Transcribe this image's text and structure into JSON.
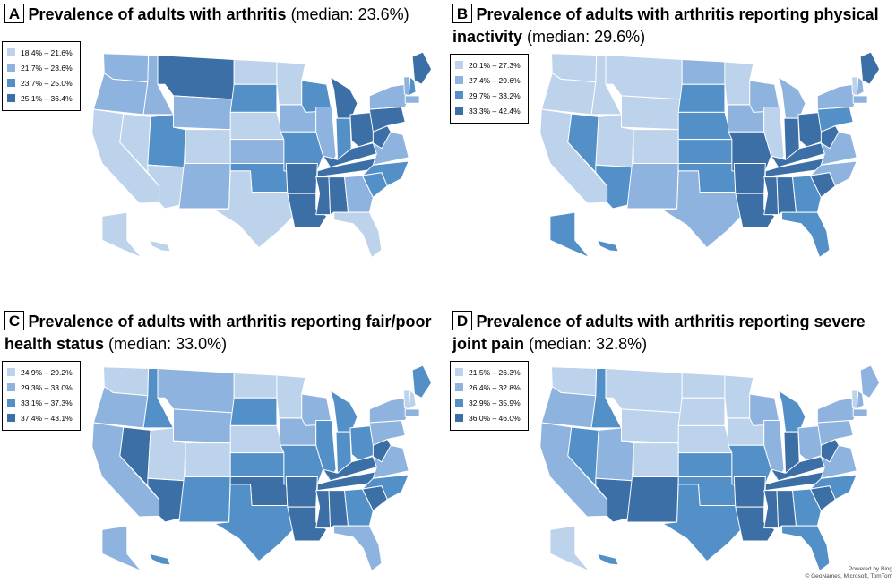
{
  "colors": {
    "level1": "#bdd3eb",
    "level2": "#8db3de",
    "level3": "#5390c8",
    "level4": "#3b6fa6",
    "no_data": "#d9d9d9",
    "state_border": "#ffffff"
  },
  "panels": [
    {
      "id": "A",
      "letter": "A",
      "title": "Prevalence of adults with arthritis",
      "median": "(median: 23.6%)",
      "legend": [
        "18.4% – 21.6%",
        "21.7% – 23.6%",
        "23.7% – 25.0%",
        "25.1% – 36.4%"
      ],
      "states": {
        "WA": 2,
        "OR": 2,
        "CA": 1,
        "NV": 1,
        "ID": 2,
        "MT": 4,
        "WY": 2,
        "UT": 3,
        "AZ": 1,
        "CO": 1,
        "NM": 2,
        "ND": 1,
        "SD": 3,
        "NE": 1,
        "KS": 2,
        "OK": 3,
        "TX": 1,
        "MN": 1,
        "IA": 2,
        "MO": 3,
        "AR": 4,
        "LA": 4,
        "WI": 3,
        "IL": 2,
        "MI": 4,
        "IN": 3,
        "OH": 4,
        "KY": 4,
        "TN": 4,
        "MS": 4,
        "AL": 4,
        "GA": 2,
        "FL": 1,
        "SC": 3,
        "NC": 3,
        "VA": 2,
        "WV": 4,
        "PA": 4,
        "NY": 2,
        "ME": 4,
        "NH": 3,
        "VT": 2,
        "MA": 2,
        "AK": 1,
        "HI": 1
      }
    },
    {
      "id": "B",
      "letter": "B",
      "title": "Prevalence of adults with arthritis reporting physical inactivity",
      "median": "(median: 29.6%)",
      "legend": [
        "20.1% – 27.3%",
        "27.4% – 29.6%",
        "29.7% – 33.2%",
        "33.3% – 42.4%"
      ],
      "states": {
        "WA": 1,
        "OR": 1,
        "CA": 1,
        "NV": 3,
        "ID": 1,
        "MT": 1,
        "WY": 1,
        "UT": 1,
        "AZ": 3,
        "CO": 1,
        "NM": 2,
        "ND": 2,
        "SD": 3,
        "NE": 3,
        "KS": 3,
        "OK": 3,
        "TX": 2,
        "MN": 1,
        "IA": 2,
        "MO": 4,
        "AR": 4,
        "LA": 4,
        "WI": 2,
        "IL": 1,
        "MI": 2,
        "IN": 4,
        "OH": 4,
        "KY": 4,
        "TN": 4,
        "MS": 4,
        "AL": 4,
        "GA": 3,
        "FL": 3,
        "SC": 4,
        "NC": 2,
        "VA": 2,
        "WV": 4,
        "PA": 3,
        "NY": 2,
        "ME": 4,
        "NH": 2,
        "VT": 1,
        "MA": 2,
        "AK": 3,
        "HI": 3
      }
    },
    {
      "id": "C",
      "letter": "C",
      "title": "Prevalence of adults with arthritis reporting fair/poor health status",
      "median": "(median: 33.0%)",
      "legend": [
        "24.9% – 29.2%",
        "29.3% – 33.0%",
        "33.1% – 37.3%",
        "37.4% – 43.1%"
      ],
      "states": {
        "WA": 1,
        "OR": 2,
        "CA": 2,
        "NV": 4,
        "ID": 3,
        "MT": 2,
        "WY": 2,
        "UT": 1,
        "AZ": 4,
        "CO": 1,
        "NM": 3,
        "ND": 1,
        "SD": 3,
        "NE": 1,
        "KS": 3,
        "OK": 4,
        "TX": 3,
        "MN": 1,
        "IA": 2,
        "MO": 3,
        "AR": 4,
        "LA": 4,
        "WI": 2,
        "IL": 3,
        "MI": 3,
        "IN": 3,
        "OH": 3,
        "KY": 4,
        "TN": 4,
        "MS": 4,
        "AL": 4,
        "GA": 3,
        "FL": 2,
        "SC": 4,
        "NC": 3,
        "VA": 2,
        "WV": 4,
        "PA": 2,
        "NY": 2,
        "ME": 3,
        "NH": 1,
        "VT": 1,
        "MA": 2,
        "AK": 2,
        "HI": 3
      }
    },
    {
      "id": "D",
      "letter": "D",
      "title": "Prevalence of adults with arthritis reporting severe joint pain",
      "median": "(median: 32.8%)",
      "legend": [
        "21.5% – 26.3%",
        "26.4% – 32.8%",
        "32.9% – 35.9%",
        "36.0% – 46.0%"
      ],
      "states": {
        "WA": 1,
        "OR": 2,
        "CA": 2,
        "NV": 3,
        "ID": 3,
        "MT": 1,
        "WY": 1,
        "UT": 2,
        "AZ": 4,
        "CO": 1,
        "NM": 4,
        "ND": 1,
        "SD": 1,
        "NE": 1,
        "KS": 3,
        "OK": 3,
        "TX": 3,
        "MN": 1,
        "IA": 1,
        "MO": 3,
        "AR": 4,
        "LA": 4,
        "WI": 2,
        "IL": 2,
        "MI": 3,
        "IN": 4,
        "OH": 2,
        "KY": 4,
        "TN": 4,
        "MS": 4,
        "AL": 4,
        "GA": 3,
        "FL": 3,
        "SC": 4,
        "NC": 3,
        "VA": 2,
        "WV": 4,
        "PA": 2,
        "NY": 2,
        "ME": 2,
        "NH": 2,
        "VT": 1,
        "MA": 2,
        "AK": 1,
        "HI": 3
      }
    }
  ],
  "attribution": {
    "line1": "Powered by Bing",
    "line2": "© GeoNames, Microsoft, TomTom"
  }
}
